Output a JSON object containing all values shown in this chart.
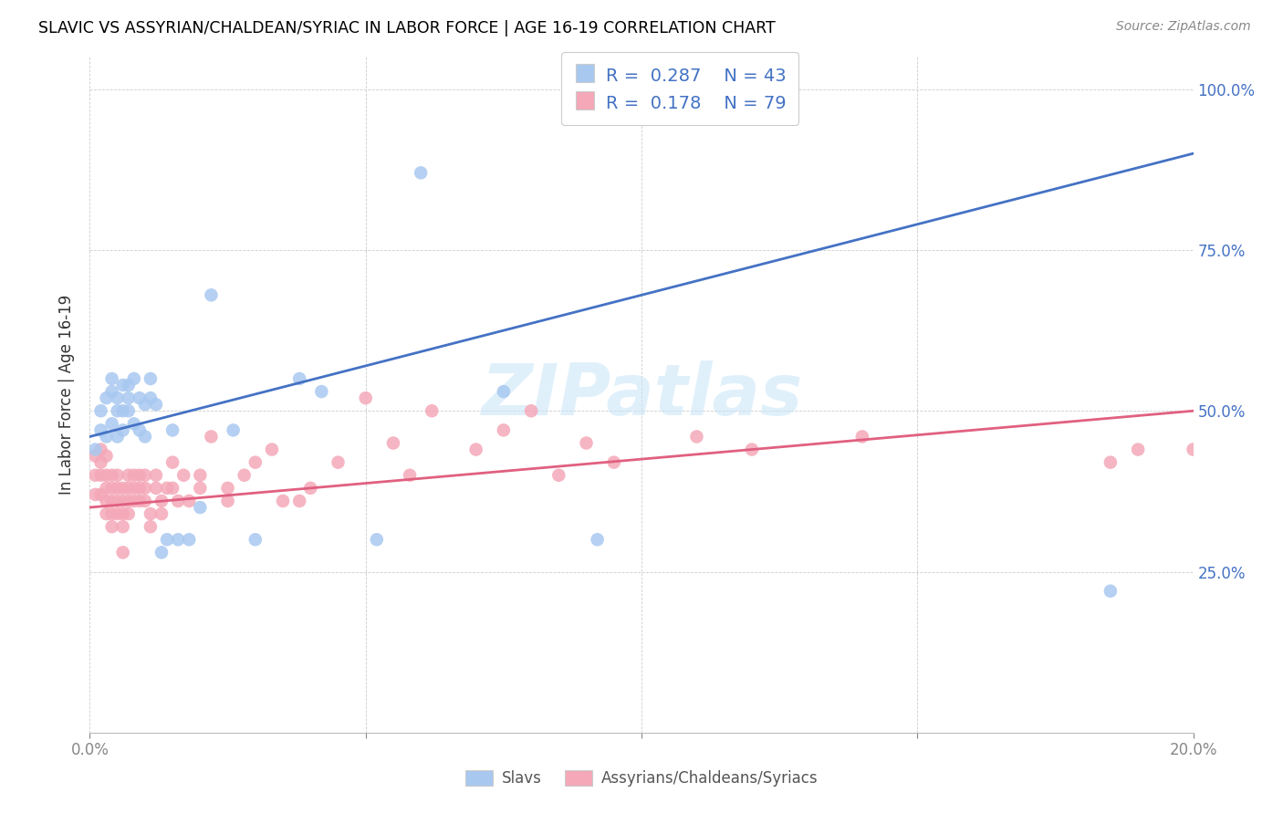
{
  "title": "SLAVIC VS ASSYRIAN/CHALDEAN/SYRIAC IN LABOR FORCE | AGE 16-19 CORRELATION CHART",
  "source": "Source: ZipAtlas.com",
  "ylabel_text": "In Labor Force | Age 16-19",
  "xmin": 0.0,
  "xmax": 0.2,
  "ymin": 0.0,
  "ymax": 1.05,
  "slavs_R": 0.287,
  "slavs_N": 43,
  "assyrians_R": 0.178,
  "assyrians_N": 79,
  "slavs_color": "#a8c8f0",
  "assyrians_color": "#f4a8b8",
  "slavs_line_color": "#4472c4",
  "assyrians_line_color": "#e06080",
  "legend_label_slavs": "Slavs",
  "legend_label_assyrians": "Assyrians/Chaldeans/Syriacs",
  "slavs_x": [
    0.001,
    0.002,
    0.002,
    0.003,
    0.003,
    0.004,
    0.004,
    0.004,
    0.005,
    0.005,
    0.005,
    0.006,
    0.006,
    0.006,
    0.007,
    0.007,
    0.007,
    0.008,
    0.008,
    0.009,
    0.009,
    0.01,
    0.01,
    0.011,
    0.011,
    0.012,
    0.013,
    0.014,
    0.015,
    0.016,
    0.018,
    0.02,
    0.022,
    0.026,
    0.03,
    0.038,
    0.042,
    0.052,
    0.06,
    0.075,
    0.092,
    0.095,
    0.185
  ],
  "slavs_y": [
    0.44,
    0.47,
    0.5,
    0.52,
    0.46,
    0.53,
    0.48,
    0.55,
    0.5,
    0.52,
    0.46,
    0.54,
    0.5,
    0.47,
    0.54,
    0.52,
    0.5,
    0.55,
    0.48,
    0.52,
    0.47,
    0.51,
    0.46,
    0.55,
    0.52,
    0.51,
    0.28,
    0.3,
    0.47,
    0.3,
    0.3,
    0.35,
    0.68,
    0.47,
    0.3,
    0.55,
    0.53,
    0.3,
    0.87,
    0.53,
    0.3,
    1.0,
    0.22
  ],
  "assyrians_x": [
    0.001,
    0.001,
    0.001,
    0.002,
    0.002,
    0.002,
    0.002,
    0.003,
    0.003,
    0.003,
    0.003,
    0.003,
    0.004,
    0.004,
    0.004,
    0.004,
    0.004,
    0.005,
    0.005,
    0.005,
    0.005,
    0.006,
    0.006,
    0.006,
    0.006,
    0.006,
    0.007,
    0.007,
    0.007,
    0.007,
    0.008,
    0.008,
    0.008,
    0.009,
    0.009,
    0.009,
    0.01,
    0.01,
    0.01,
    0.011,
    0.011,
    0.012,
    0.012,
    0.013,
    0.013,
    0.014,
    0.015,
    0.015,
    0.016,
    0.017,
    0.018,
    0.02,
    0.02,
    0.022,
    0.025,
    0.025,
    0.028,
    0.03,
    0.033,
    0.035,
    0.038,
    0.04,
    0.045,
    0.05,
    0.055,
    0.058,
    0.062,
    0.07,
    0.075,
    0.08,
    0.085,
    0.09,
    0.095,
    0.11,
    0.12,
    0.14,
    0.185,
    0.19,
    0.2
  ],
  "assyrians_y": [
    0.43,
    0.4,
    0.37,
    0.42,
    0.44,
    0.4,
    0.37,
    0.43,
    0.4,
    0.38,
    0.36,
    0.34,
    0.4,
    0.38,
    0.36,
    0.34,
    0.32,
    0.4,
    0.38,
    0.36,
    0.34,
    0.38,
    0.36,
    0.34,
    0.32,
    0.28,
    0.4,
    0.38,
    0.36,
    0.34,
    0.4,
    0.38,
    0.36,
    0.4,
    0.38,
    0.36,
    0.4,
    0.38,
    0.36,
    0.34,
    0.32,
    0.4,
    0.38,
    0.36,
    0.34,
    0.38,
    0.42,
    0.38,
    0.36,
    0.4,
    0.36,
    0.4,
    0.38,
    0.46,
    0.36,
    0.38,
    0.4,
    0.42,
    0.44,
    0.36,
    0.36,
    0.38,
    0.42,
    0.52,
    0.45,
    0.4,
    0.5,
    0.44,
    0.47,
    0.5,
    0.4,
    0.45,
    0.42,
    0.46,
    0.44,
    0.46,
    0.42,
    0.44,
    0.44
  ],
  "slavs_line_x0": 0.0,
  "slavs_line_x1": 0.2,
  "slavs_line_y0": 0.46,
  "slavs_line_y1": 0.9,
  "assyrians_line_x0": 0.0,
  "assyrians_line_x1": 0.2,
  "assyrians_line_y0": 0.35,
  "assyrians_line_y1": 0.5
}
